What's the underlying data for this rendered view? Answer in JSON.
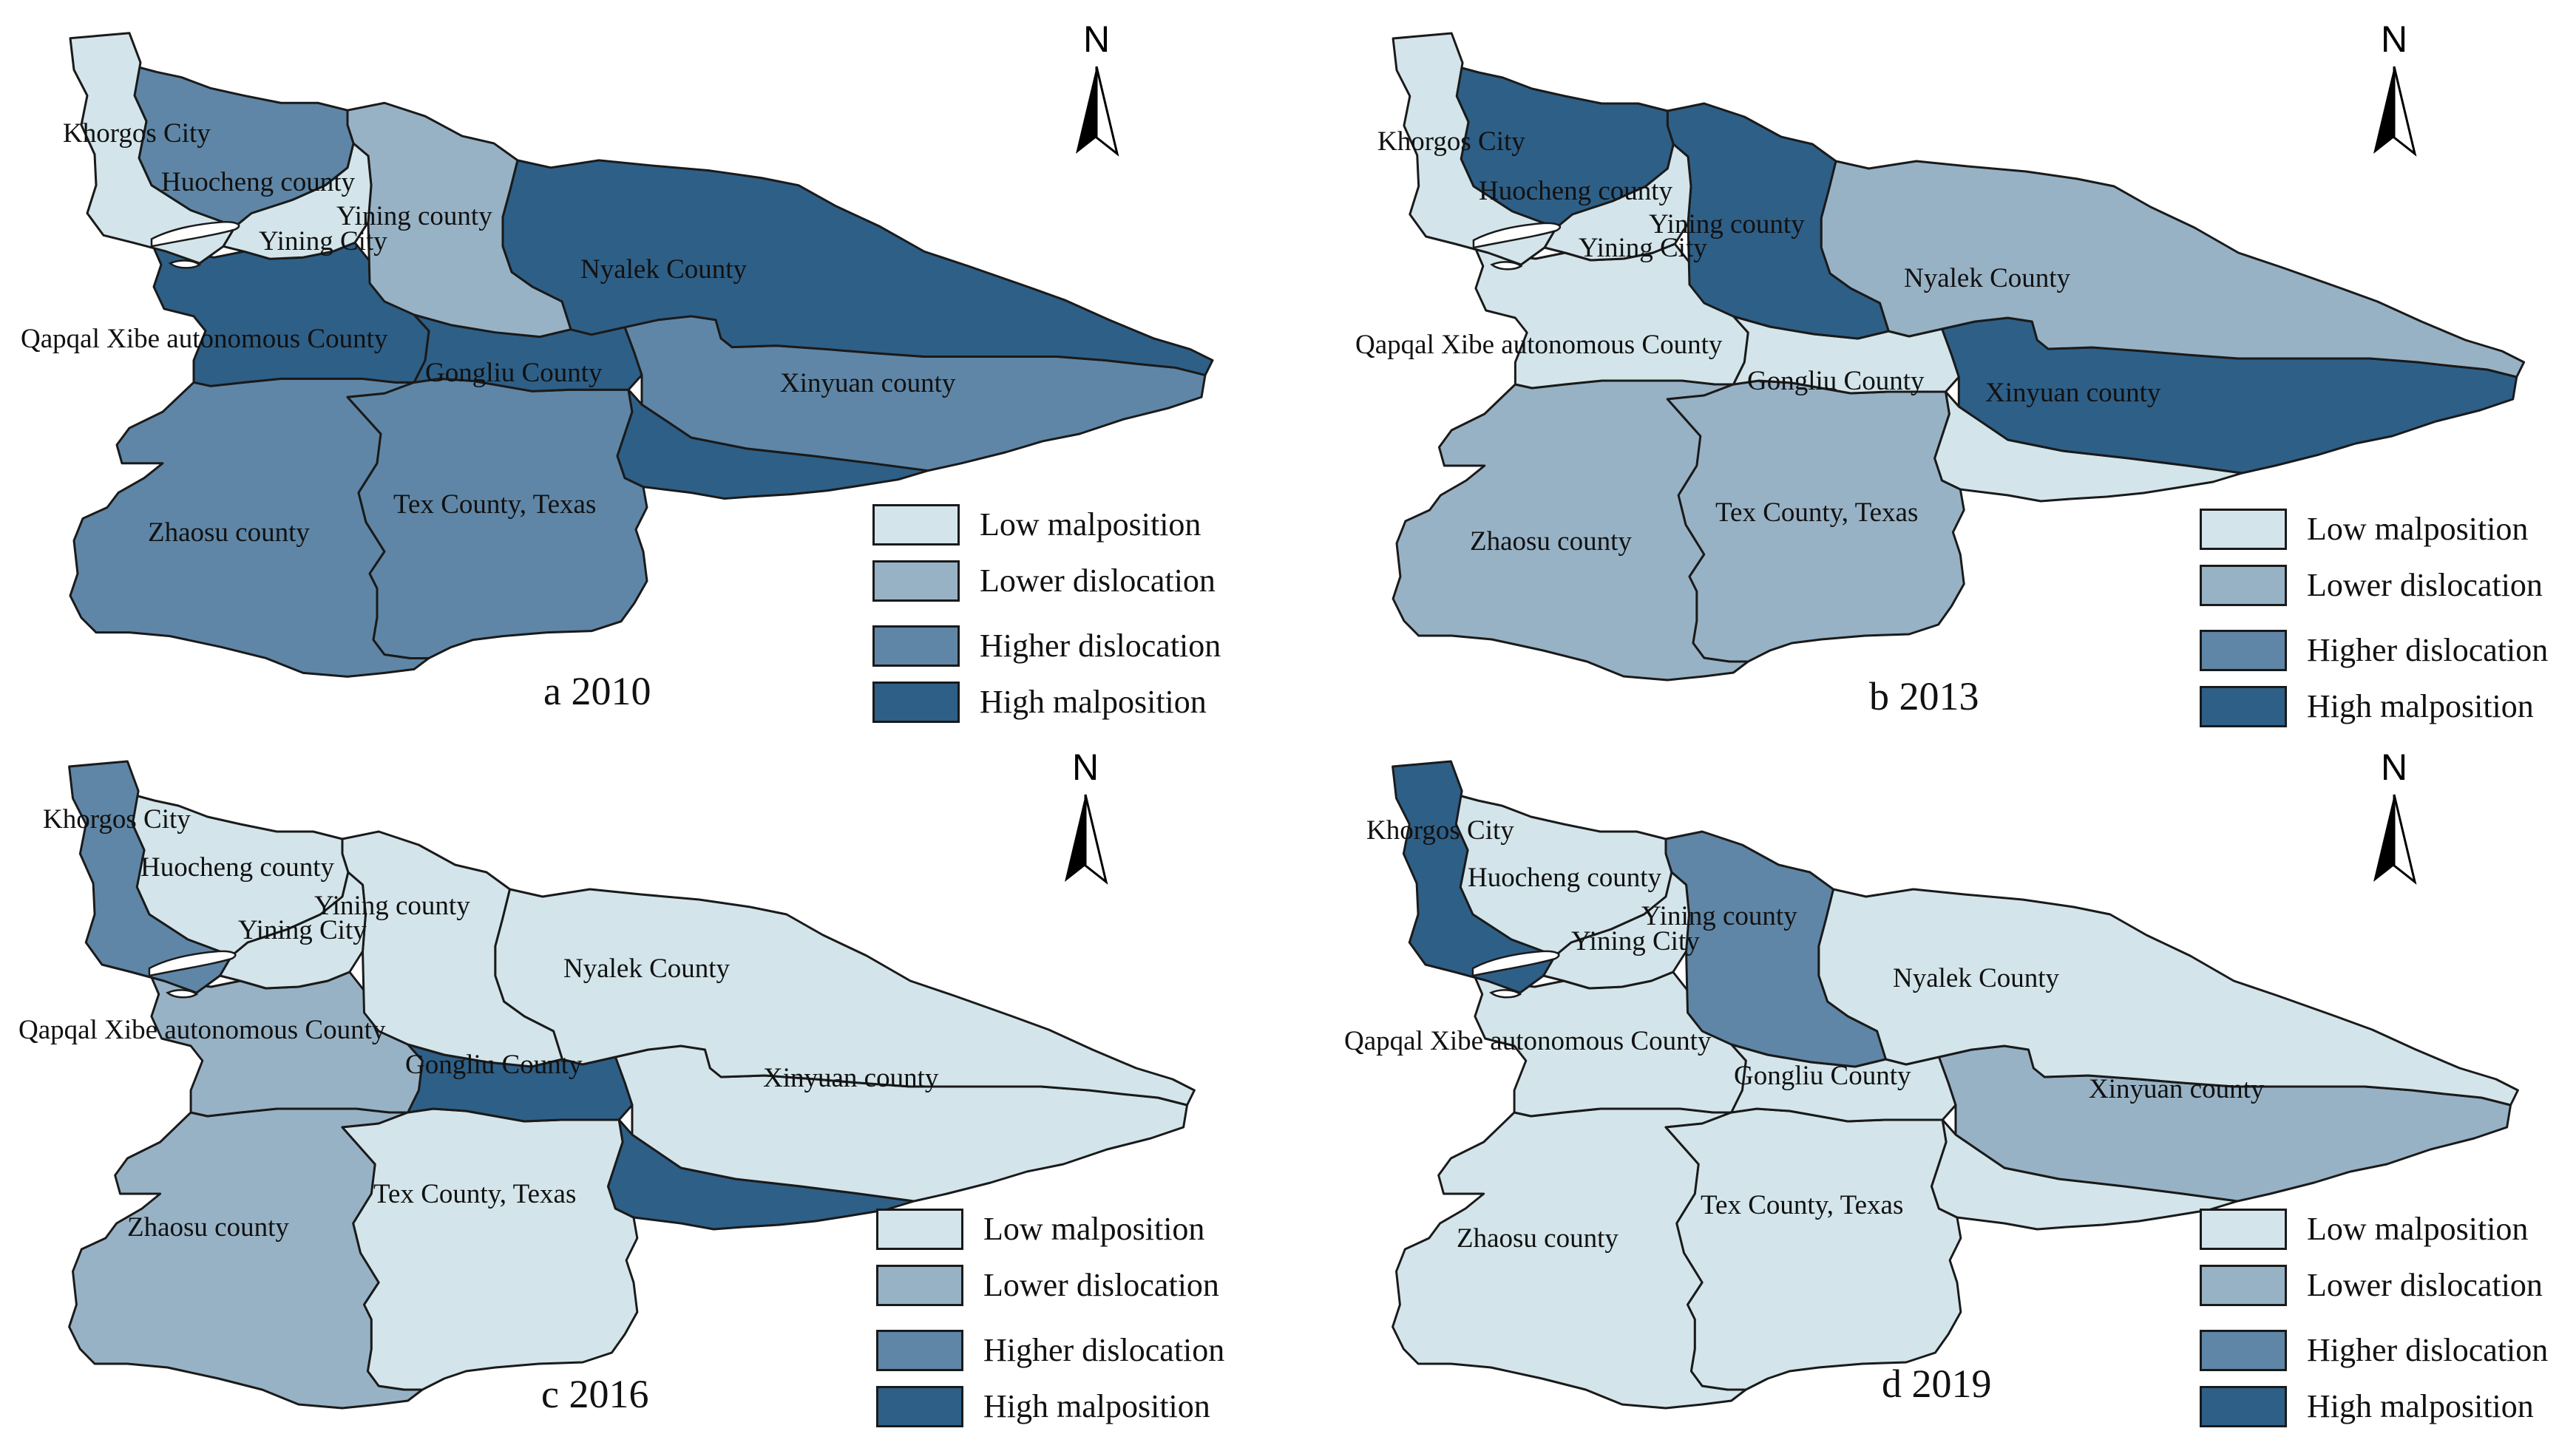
{
  "colors": {
    "low_malposition": "#d3e5ea",
    "lower_dislocation": "#98b2c5",
    "higher_dislocation": "#5f86a6",
    "high_malposition": "#2e5f87",
    "outline": "#1a1a1a"
  },
  "north_label": "N",
  "legend": [
    {
      "class": "low_malposition",
      "label": "Low malposition"
    },
    {
      "class": "lower_dislocation",
      "label": "Lower dislocation"
    },
    {
      "class": "higher_dislocation",
      "label": "Higher dislocation"
    },
    {
      "class": "high_malposition",
      "label": "High malposition"
    }
  ],
  "region_names": {
    "khorgos": "Khorgos City",
    "huocheng": "Huocheng county",
    "yining_county": "Yining county",
    "yining_city": "Yining City",
    "nyalek": "Nyalek County",
    "qapqal": "Qapqal Xibe autonomous County",
    "gongliu": "Gongliu County",
    "xinyuan": "Xinyuan county",
    "zhaosu": "Zhaosu county",
    "tex": "Tex County, Texas"
  },
  "panels": [
    {
      "caption": "a  2010",
      "classes": {
        "khorgos": "low_malposition",
        "huocheng": "higher_dislocation",
        "yining_county": "lower_dislocation",
        "yining_city": "low_malposition",
        "nyalek": "high_malposition",
        "qapqal": "high_malposition",
        "gongliu": "high_malposition",
        "xinyuan": "higher_dislocation",
        "zhaosu": "higher_dislocation",
        "tex": "higher_dislocation",
        "tex_southeast": "high_malposition"
      }
    },
    {
      "caption": "b  2013",
      "classes": {
        "khorgos": "low_malposition",
        "huocheng": "high_malposition",
        "yining_county": "high_malposition",
        "yining_city": "low_malposition",
        "nyalek": "lower_dislocation",
        "qapqal": "low_malposition",
        "gongliu": "low_malposition",
        "xinyuan": "high_malposition",
        "zhaosu": "lower_dislocation",
        "tex": "lower_dislocation",
        "tex_southeast": "low_malposition"
      }
    },
    {
      "caption": "c  2016",
      "classes": {
        "khorgos": "higher_dislocation",
        "huocheng": "low_malposition",
        "yining_county": "low_malposition",
        "yining_city": "low_malposition",
        "nyalek": "low_malposition",
        "qapqal": "lower_dislocation",
        "gongliu": "high_malposition",
        "xinyuan": "low_malposition",
        "zhaosu": "lower_dislocation",
        "tex": "low_malposition",
        "tex_southeast": "high_malposition"
      }
    },
    {
      "caption": "d  2019",
      "classes": {
        "khorgos": "high_malposition",
        "huocheng": "low_malposition",
        "yining_county": "higher_dislocation",
        "yining_city": "low_malposition",
        "nyalek": "low_malposition",
        "qapqal": "low_malposition",
        "gongliu": "low_malposition",
        "xinyuan": "lower_dislocation",
        "zhaosu": "low_malposition",
        "tex": "low_malposition",
        "tex_southeast": "low_malposition"
      }
    }
  ]
}
